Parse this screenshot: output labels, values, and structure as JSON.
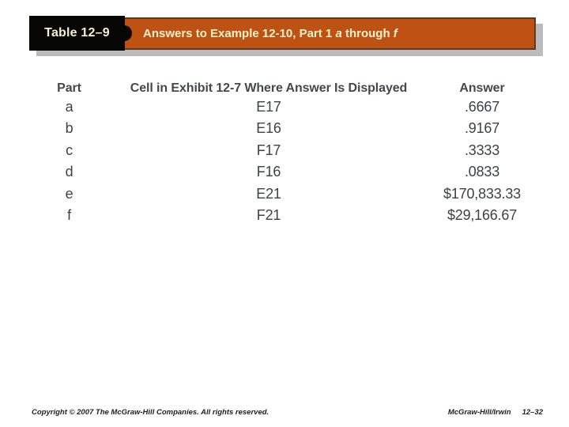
{
  "colors": {
    "banner_orange": "#bf5212",
    "banner_border": "#5f3a22",
    "banner_shadow": "#bcbcbc",
    "tag_black": "#060604",
    "cream_text": "#f7f2ce",
    "table_text": "#3e4245"
  },
  "header": {
    "tag_label": "Table 12–9",
    "title_part1": "Answers to Example 12-10, Part 1 ",
    "title_em1": "a",
    "title_part2": " through ",
    "title_em2": "f"
  },
  "table": {
    "columns": [
      "Part",
      "Cell in Exhibit 12-7 Where Answer Is Displayed",
      "Answer"
    ],
    "rows": [
      {
        "part": "a",
        "cell": "E17",
        "answer": ".6667"
      },
      {
        "part": "b",
        "cell": "E16",
        "answer": ".9167"
      },
      {
        "part": "c",
        "cell": "F17",
        "answer": ".3333"
      },
      {
        "part": "d",
        "cell": "F16",
        "answer": ".0833"
      },
      {
        "part": "e",
        "cell": "E21",
        "answer": "$170,833.33"
      },
      {
        "part": "f",
        "cell": "F21",
        "answer": "$29,166.67"
      }
    ]
  },
  "footer": {
    "copyright": "Copyright © 2007 The McGraw-Hill Companies. All rights reserved.",
    "brand": "McGraw-Hill/Irwin",
    "page": "12–32"
  }
}
